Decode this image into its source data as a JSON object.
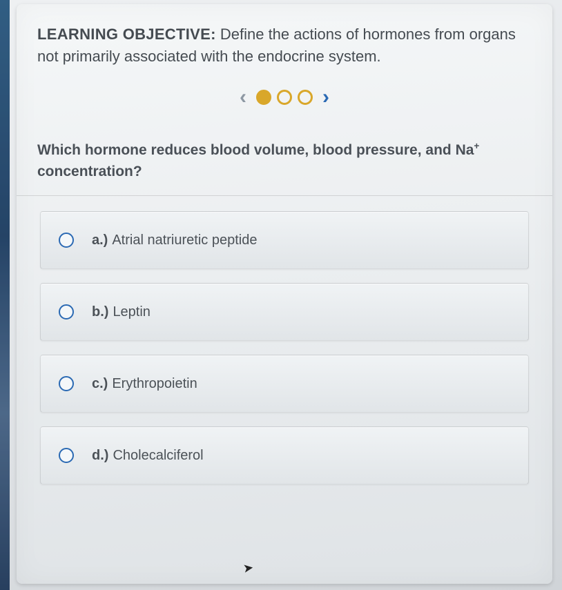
{
  "objective": {
    "label": "LEARNING OBJECTIVE:",
    "text": "Define the actions of hormones from organs not primarily associated with the endocrine system."
  },
  "pager": {
    "total": 3,
    "current_index": 0,
    "prev_glyph": "‹",
    "next_glyph": "›",
    "dot_outline_color": "#d9a72a",
    "dot_fill_color": "#d9a72a",
    "prev_color": "#8d98a3",
    "next_color": "#2a69b3"
  },
  "question": {
    "text_before_sup": "Which hormone reduces blood volume, blood pressure, and Na",
    "sup": "+",
    "text_after_sup": " concentration?"
  },
  "options": [
    {
      "letter": "a.)",
      "text": "Atrial natriuretic peptide"
    },
    {
      "letter": "b.)",
      "text": "Leptin"
    },
    {
      "letter": "c.)",
      "text": "Erythropoietin"
    },
    {
      "letter": "d.)",
      "text": "Cholecalciferol"
    }
  ],
  "colors": {
    "card_bg_top": "#f5f7f8",
    "card_bg_bottom": "#dfe3e6",
    "text": "#454b51",
    "radio_border": "#2a69b3",
    "option_bg_top": "#f0f3f5",
    "option_bg_bottom": "#e1e5e8"
  },
  "typography": {
    "objective_fontsize": 22,
    "question_fontsize": 21,
    "option_fontsize": 20
  }
}
